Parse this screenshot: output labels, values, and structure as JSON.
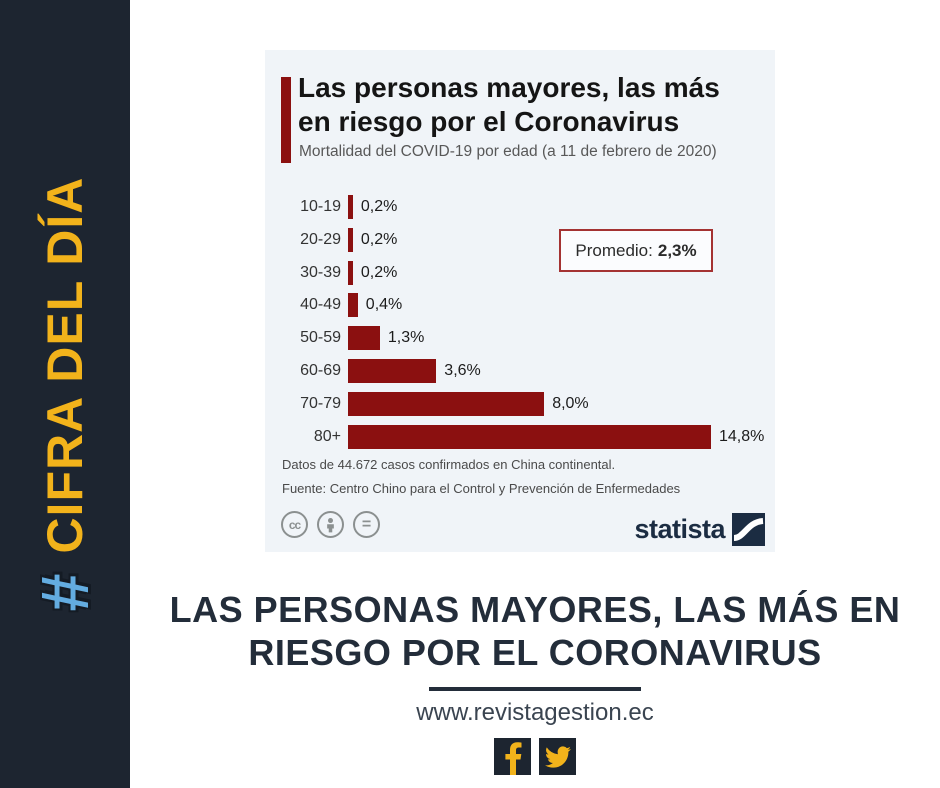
{
  "theme": {
    "sidebar_bg": "#1d2530",
    "sidebar_text_yellow": "#f2b31b",
    "hashtag_blue": "#63ace0",
    "card_bg": "#f0f4f8",
    "bar_red": "#8b1010",
    "headline_navy": "#232d3a",
    "brand_navy": "#1b2c42",
    "average_box_border": "#a43232",
    "social_icon_yellow": "#f2b31b"
  },
  "sidebar": {
    "hashtag": "#",
    "label": "CIFRA DEL DÍA"
  },
  "card": {
    "title_lines": [
      "Las personas mayores, las más",
      "en riesgo por el Coronavirus"
    ],
    "subtitle": "Mortalidad del COVID-19 por edad (a 11 de febrero de 2020)",
    "average_label": "Promedio:",
    "average_value": "2,3%",
    "note_line1": "Datos de 44.672 casos confirmados en China continental.",
    "note_line2": "Fuente: Centro Chino para el Control y Prevención de Enfermedades",
    "license_icons": [
      "cc",
      "attribution",
      "no-derivatives"
    ],
    "cc_text": "cc",
    "eq_text": "=",
    "brand": "statista"
  },
  "chart_data": {
    "type": "bar",
    "orientation": "horizontal",
    "title": "Las personas mayores, las más en riesgo por el Coronavirus",
    "subtitle": "Mortalidad del COVID-19 por edad (a 11 de febrero de 2020)",
    "categories": [
      "10-19",
      "20-29",
      "30-39",
      "40-49",
      "50-59",
      "60-69",
      "70-79",
      "80+"
    ],
    "values": [
      0.2,
      0.2,
      0.2,
      0.4,
      1.3,
      3.6,
      8.0,
      14.8
    ],
    "value_labels": [
      "0,2%",
      "0,2%",
      "0,2%",
      "0,4%",
      "1,3%",
      "3,6%",
      "8,0%",
      "14,8%"
    ],
    "average": {
      "label": "Promedio:",
      "value": 2.3,
      "value_label": "2,3%"
    },
    "xlim": [
      0,
      15.2
    ],
    "grid": false,
    "legend": false,
    "bar_color": "#8b1010",
    "source_note": "Datos de 44.672 casos confirmados en China continental.",
    "source": "Fuente: Centro Chino para el Control y Prevención de Enfermedades"
  },
  "footer": {
    "headline_lines": [
      "LAS PERSONAS MAYORES, LAS MÁS EN",
      "RIESGO POR EL CORONAVIRUS"
    ],
    "url": "www.revistagestion.ec",
    "social": [
      "facebook",
      "twitter"
    ]
  }
}
